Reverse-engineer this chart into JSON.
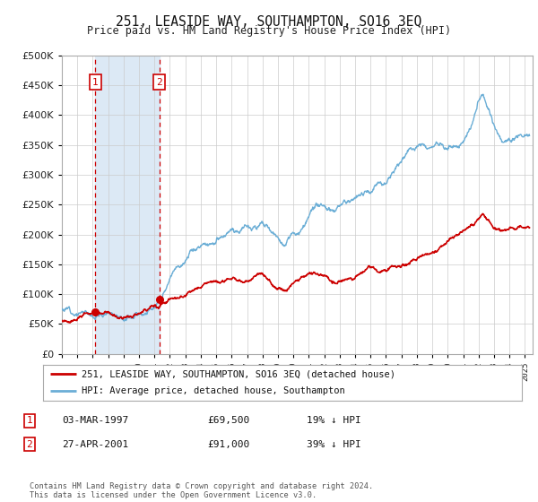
{
  "title": "251, LEASIDE WAY, SOUTHAMPTON, SO16 3EQ",
  "subtitle": "Price paid vs. HM Land Registry's House Price Index (HPI)",
  "legend_entry1": "251, LEASIDE WAY, SOUTHAMPTON, SO16 3EQ (detached house)",
  "legend_entry2": "HPI: Average price, detached house, Southampton",
  "table_row1": [
    "1",
    "03-MAR-1997",
    "£69,500",
    "19% ↓ HPI"
  ],
  "table_row2": [
    "2",
    "27-APR-2001",
    "£91,000",
    "39% ↓ HPI"
  ],
  "footnote": "Contains HM Land Registry data © Crown copyright and database right 2024.\nThis data is licensed under the Open Government Licence v3.0.",
  "sale1_date": 1997.17,
  "sale1_price": 69500,
  "sale2_date": 2001.32,
  "sale2_price": 91000,
  "hpi_color": "#6baed6",
  "price_color": "#cc0000",
  "shade_color": "#dce9f5",
  "dashed_color": "#cc0000",
  "background_color": "#ffffff",
  "grid_color": "#cccccc",
  "ylim_max": 500000,
  "xlim_start": 1995.0,
  "xlim_end": 2025.5
}
